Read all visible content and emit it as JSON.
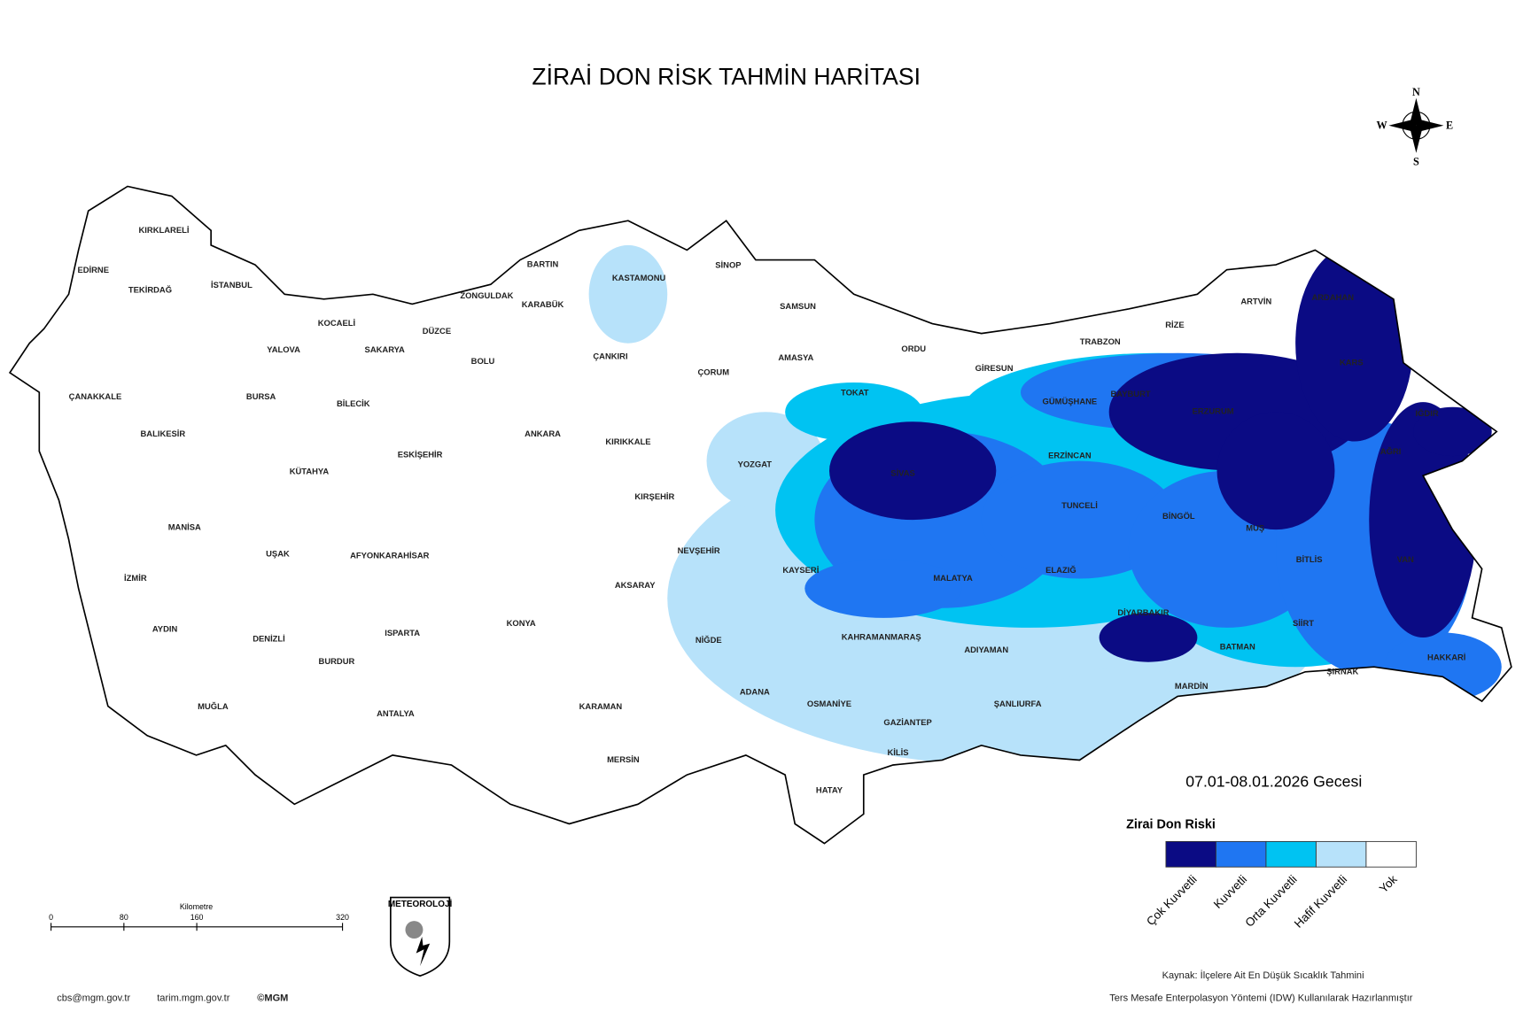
{
  "header": {
    "title": "ZİRAİ DON RİSK TAHMİN HARİTASI"
  },
  "compass": {
    "n": "N",
    "e": "E",
    "s": "S",
    "w": "W"
  },
  "date": "07.01-08.01.2026 Gecesi",
  "legend": {
    "title": "Zirai Don Riski",
    "items": [
      {
        "label": "Çok Kuvvetli",
        "color": "#0b0b84"
      },
      {
        "label": "Kuvvetli",
        "color": "#1f76f2"
      },
      {
        "label": "Orta Kuvvetli",
        "color": "#00c3f2"
      },
      {
        "label": "Hafif Kuvvetli",
        "color": "#b7e2fa"
      },
      {
        "label": "Yok",
        "color": "#ffffff"
      }
    ]
  },
  "scale_bar": {
    "unit": "Kilometre",
    "ticks": [
      0,
      80,
      160,
      320
    ]
  },
  "logo": "METEOROLOJİ",
  "footer": {
    "email": "cbs@mgm.gov.tr",
    "site": "tarim.mgm.gov.tr",
    "copyright": "©MGM",
    "source": "Kaynak: İlçelere Ait En Düşük Sıcaklık Tahmini",
    "method": "Ters Mesafe Enterpolasyon Yöntemi (IDW) Kullanılarak Hazırlanmıştır"
  },
  "provinces": [
    "KIRKLARELİ",
    "EDİRNE",
    "TEKİRDAĞ",
    "İSTANBUL",
    "KOCAELİ",
    "YALOVA",
    "SAKARYA",
    "DÜZCE",
    "BOLU",
    "ZONGULDAK",
    "BARTIN",
    "KARABÜK",
    "KASTAMONU",
    "SİNOP",
    "SAMSUN",
    "ÇANKIRI",
    "ÇORUM",
    "AMASYA",
    "ORDU",
    "GİRESUN",
    "TRABZON",
    "RİZE",
    "ARTVİN",
    "ARDAHAN",
    "KARS",
    "IĞDIR",
    "AĞRI",
    "ERZURUM",
    "BAYBURT",
    "GÜMÜŞHANE",
    "TOKAT",
    "SİVAS",
    "ERZİNCAN",
    "TUNCELİ",
    "BİNGÖL",
    "MUŞ",
    "BİTLİS",
    "VAN",
    "ÇANAKKALE",
    "BALIKESİR",
    "BURSA",
    "BİLECİK",
    "ESKİŞEHİR",
    "ANKARA",
    "KIRIKKALE",
    "YOZGAT",
    "KIRŞEHİR",
    "KÜTAHYA",
    "MANİSA",
    "UŞAK",
    "AFYONKARAHİSAR",
    "İZMİR",
    "NEVŞEHİR",
    "KAYSERİ",
    "AKSARAY",
    "MALATYA",
    "ELAZIĞ",
    "DİYARBAKIR",
    "SİİRT",
    "AYDIN",
    "DENİZLİ",
    "ISPARTA",
    "KONYA",
    "NİĞDE",
    "KAHRAMANMARAŞ",
    "ADIYAMAN",
    "BATMAN",
    "HAKKARİ",
    "ŞIRNAK",
    "BURDUR",
    "MARDİN",
    "ADANA",
    "OSMANİYE",
    "ŞANLIURFA",
    "MUĞLA",
    "ANTALYA",
    "KARAMAN",
    "GAZİANTEP",
    "KİLİS",
    "MERSİN",
    "HATAY"
  ]
}
